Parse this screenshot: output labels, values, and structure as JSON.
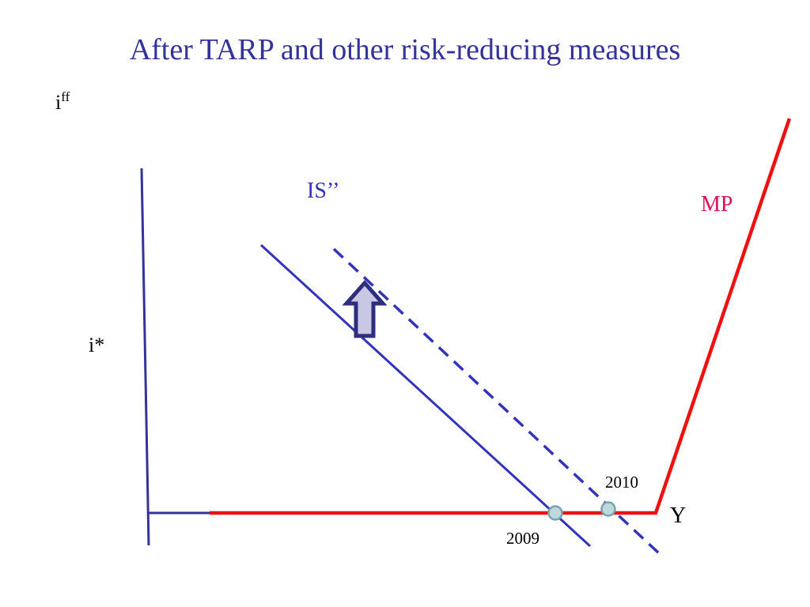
{
  "slide": {
    "title": "After TARP and other risk-reducing measures"
  },
  "axes": {
    "y_label_base": "i",
    "y_label_superscript": "ff",
    "x_label": "Y",
    "reference_rate_label": "i*"
  },
  "curves": {
    "is_shifted_label": "IS’’",
    "mp_label": "MP"
  },
  "markers": {
    "year_2009": "2009",
    "year_2010": "2010"
  },
  "colors": {
    "title": "#333399",
    "axis": "#333399",
    "is_curve": "#3333BB",
    "mp_curve": "#EE1111",
    "mp_label": "#E0105A",
    "marker_fill": "#BFD8DC",
    "marker_stroke": "#7AA3B0",
    "arrow_fill": "#C8C8E4",
    "arrow_stroke": "#2E2E7A"
  },
  "icons": {
    "shift_arrow": "up-arrow-icon",
    "equilibrium_marker": "circle-marker-icon"
  }
}
